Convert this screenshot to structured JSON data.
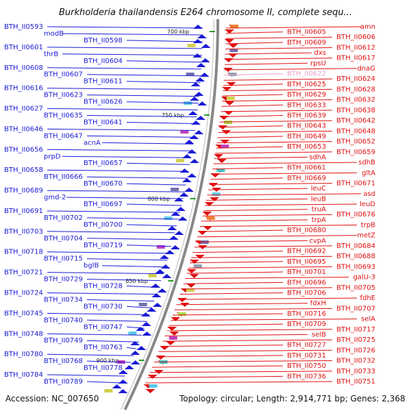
{
  "title": "Burkholderia thailandensis E264 chromosome II, complete sequ...",
  "footer": {
    "accession": "Accession: NC_007650",
    "topology": "Topology: circular; Length: 2,914,771 bp; Genes: 2,368"
  },
  "colors": {
    "forward": "#1a1ad6",
    "reverse": "#e01010",
    "highlight": "#e8a0c8",
    "backbone": "#888888",
    "tick": "#2a9a2a"
  },
  "ticks": [
    "700 kbp",
    "750 kbp",
    "800 kbp",
    "850 kbp",
    "900 kbp"
  ],
  "left_labels": [
    "BTH_II0593",
    "modB",
    "BTH_II0598",
    "BTH_II0601",
    "thrB",
    "BTH_II0604",
    "BTH_II0608",
    "BTH_II0607",
    "BTH_II0611",
    "BTH_II0616",
    "BTH_II0623",
    "BTH_II0626",
    "BTH_II0627",
    "BTH_II0635",
    "BTH_II0641",
    "BTH_II0646",
    "BTH_II0647",
    "acnA",
    "BTH_II0656",
    "prpD",
    "BTH_II0657",
    "BTH_II0658",
    "BTH_II0666",
    "BTH_II0670",
    "BTH_II0689",
    "gmd-2",
    "BTH_II0697",
    "BTH_II0691",
    "BTH_II0702",
    "BTH_II0700",
    "BTH_II0703",
    "BTH_II0704",
    "BTH_II0719",
    "BTH_II0718",
    "BTH_II0715",
    "bglB",
    "BTH_II0721",
    "BTH_II0729",
    "BTH_II0728",
    "BTH_II0724",
    "BTH_II0734",
    "BTH_II0730",
    "BTH_II0745",
    "BTH_II0740",
    "BTH_II0747",
    "BTH_II0748",
    "BTH_II0749",
    "BTH_II0763",
    "BTH_II0780",
    "BTH_II0768",
    "BTH_II0778",
    "BTH_II0784",
    "BTH_II0789"
  ],
  "right_labels": [
    "amn",
    "BTH_II0605",
    "BTH_II0606",
    "BTH_II0609",
    "BTH_II0612",
    "dxs",
    "BTH_II0617",
    "rpsU",
    "dnaG",
    "BTH_II0622",
    "BTH_II0624",
    "BTH_II0625",
    "BTH_II0628",
    "BTH_II0629",
    "BTH_II0632",
    "BTH_II0633",
    "BTH_II0638",
    "BTH_II0639",
    "BTH_II0642",
    "BTH_II0643",
    "BTH_II0648",
    "BTH_II0649",
    "BTH_II0652",
    "BTH_II0653",
    "BTH_II0659",
    "sdhA",
    "sdhB",
    "BTH_II0661",
    "gltA",
    "BTH_II0669",
    "BTH_II0671",
    "leuC",
    "asd",
    "leuB",
    "leuD",
    "truA",
    "BTH_II0676",
    "trpA",
    "trpB",
    "BTH_II0680",
    "metZ",
    "cvpA",
    "BTH_II0684",
    "BTH_II0692",
    "BTH_II0688",
    "BTH_II0695",
    "BTH_II0693",
    "BTH_II0701",
    "galU-3",
    "BTH_II0696",
    "BTH_II0705",
    "BTH_II0706",
    "fdhE",
    "fdxH",
    "BTH_II0707",
    "BTH_II0716",
    "selA",
    "BTH_II0709",
    "BTH_II0717",
    "selB",
    "BTH_II0725",
    "BTH_II0727",
    "BTH_II0726",
    "BTH_II0731",
    "BTH_II0732",
    "BTH_II0750",
    "BTH_II0733",
    "BTH_II0736",
    "BTH_II0751"
  ]
}
